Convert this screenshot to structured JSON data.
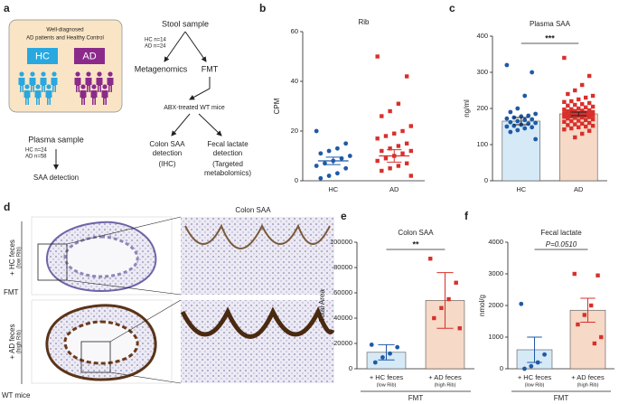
{
  "diagram": {
    "label": "a",
    "box_title": [
      "Well-diagnosed",
      "AD patients and Healthy Control"
    ],
    "groups": [
      "HC",
      "AD"
    ],
    "stool": "Stool sample",
    "stool_n": [
      "HC n=14",
      "AD n=24"
    ],
    "branches": [
      "Metagenomics",
      "FMT"
    ],
    "mice": "ABX-treated WT mice",
    "colon": [
      "Colon SAA",
      "detection",
      "(IHC)"
    ],
    "lactate": [
      "Fecal lactate",
      "detection",
      "(Targeted",
      "metabolomics)"
    ],
    "plasma": "Plasma sample",
    "plasma_n": [
      "HC n=24",
      "AD n=58"
    ],
    "plasma_out": "SAA detection"
  },
  "image_panel": {
    "label": "d",
    "title": "Colon SAA",
    "groups": [
      {
        "name": "+ HC feces",
        "note": "(low Rib)"
      },
      {
        "name": "+ AD feces",
        "note": "(high Rib)"
      }
    ],
    "treatment": "FMT",
    "subject": "WT mice"
  },
  "chart_data": [
    {
      "type": "strip",
      "panel": "b",
      "title": "Rib",
      "ylabel": "CPM",
      "categories": [
        "HC",
        "AD"
      ],
      "points": [
        [
          20,
          15,
          13,
          12,
          11,
          10,
          9,
          8,
          7,
          6,
          5,
          3,
          2,
          1
        ],
        [
          50,
          42,
          31,
          28,
          26,
          22,
          20,
          19,
          18,
          17,
          15,
          14,
          13,
          12,
          12,
          11,
          10,
          9,
          8,
          7,
          6,
          5,
          4,
          2
        ]
      ],
      "values": [
        8,
        10
      ],
      "errors": [
        1.5,
        2.5
      ],
      "point_colors": [
        "#1f5aa6",
        "#d8302c"
      ],
      "markers": [
        "circle",
        "square"
      ],
      "ylim": [
        0,
        60
      ],
      "yticks": [
        0,
        20,
        40,
        60
      ]
    },
    {
      "type": "bar",
      "panel": "c",
      "title": "Plasma SAA",
      "ylabel": "ng/ml",
      "categories": [
        "HC",
        "AD"
      ],
      "points": [
        [
          320,
          300,
          235,
          200,
          190,
          185,
          180,
          178,
          175,
          172,
          170,
          168,
          165,
          162,
          160,
          158,
          155,
          152,
          150,
          148,
          145,
          140,
          135,
          115
        ],
        [
          340,
          290,
          265,
          250,
          240,
          235,
          230,
          225,
          220,
          218,
          215,
          212,
          210,
          208,
          205,
          203,
          200,
          198,
          197,
          195,
          194,
          193,
          192,
          190,
          189,
          188,
          187,
          186,
          185,
          184,
          183,
          182,
          181,
          180,
          179,
          178,
          177,
          176,
          175,
          174,
          172,
          170,
          168,
          166,
          165,
          163,
          160,
          158,
          156,
          154,
          152,
          150,
          148,
          145,
          142,
          138,
          130,
          120
        ]
      ],
      "values": [
        165,
        185
      ],
      "errors": [
        10,
        5
      ],
      "colors": [
        "#d5e9f7",
        "#f6d9c6"
      ],
      "point_colors": [
        "#1f5aa6",
        "#d8302c"
      ],
      "error_colors": [
        "#222",
        "#222"
      ],
      "markers": [
        "circle",
        "square"
      ],
      "annotation": "***",
      "ylim": [
        0,
        400
      ],
      "yticks": [
        0,
        100,
        200,
        300,
        400
      ]
    },
    {
      "type": "bar",
      "panel": "e",
      "title": "Colon SAA",
      "ylabel": "Total Area",
      "categories": [
        "+ HC feces",
        "+ AD feces"
      ],
      "category_notes": [
        "(low Rib)",
        "(high Rib)"
      ],
      "xlabel": "FMT",
      "points": [
        [
          19000,
          17000,
          12000,
          9000,
          5000
        ],
        [
          87000,
          68000,
          55000,
          48000,
          40000,
          32000
        ]
      ],
      "values": [
        13000,
        54000
      ],
      "errors": [
        6000,
        22000
      ],
      "colors": [
        "#d5e9f7",
        "#f6d9c6"
      ],
      "point_colors": [
        "#1f5aa6",
        "#d8302c"
      ],
      "error_colors": [
        "#1f5aa6",
        "#d8302c"
      ],
      "markers": [
        "circle",
        "square"
      ],
      "annotation": "**",
      "ylim": [
        0,
        100000
      ],
      "yticks": [
        0,
        20000,
        40000,
        60000,
        80000,
        100000
      ]
    },
    {
      "type": "bar",
      "panel": "f",
      "title": "Fecal lactate",
      "ylabel": "nmol/g",
      "categories": [
        "+ HC feces",
        "+ AD feces"
      ],
      "category_notes": [
        "(low Rib)",
        "(high Rib)"
      ],
      "xlabel": "FMT",
      "points": [
        [
          2050,
          450,
          200,
          80,
          0
        ],
        [
          3000,
          2950,
          2000,
          1700,
          1400,
          1000,
          800
        ]
      ],
      "values": [
        600,
        1850
      ],
      "errors": [
        400,
        380
      ],
      "colors": [
        "#d5e9f7",
        "#f6d9c6"
      ],
      "point_colors": [
        "#1f5aa6",
        "#d8302c"
      ],
      "error_colors": [
        "#1f5aa6",
        "#d8302c"
      ],
      "markers": [
        "circle",
        "square"
      ],
      "annotation": "P=0.0510",
      "ylim": [
        0,
        4000
      ],
      "yticks": [
        0,
        1000,
        2000,
        3000,
        4000
      ]
    }
  ]
}
